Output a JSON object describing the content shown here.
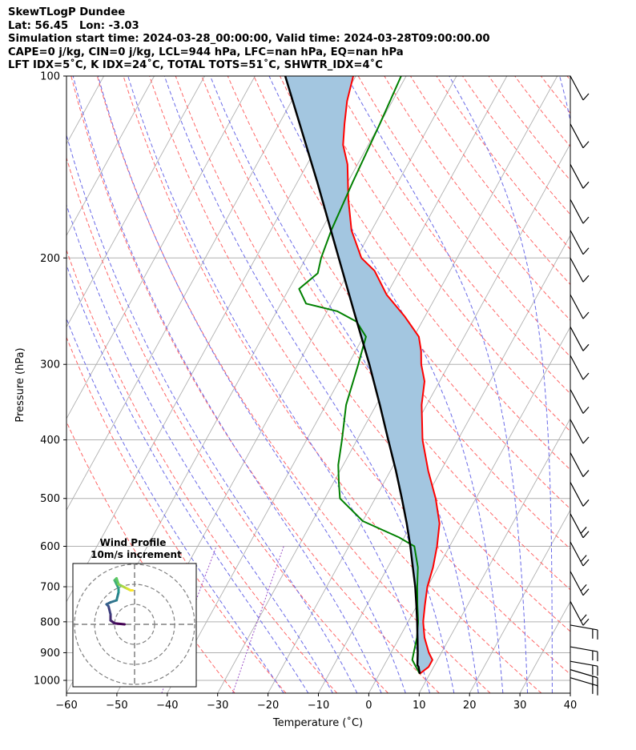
{
  "header": {
    "title": "SkewTLogP Dundee",
    "location": "Lat: 56.45   Lon: -3.03",
    "times": "Simulation start time: 2024-03-28_00:00:00, Valid time: 2024-03-28T09:00:00.00",
    "indices1": "CAPE=0 j/kg, CIN=0 j/kg, LCL=944 hPa, LFC=nan hPa, EQ=nan hPa",
    "indices2": "LFT IDX=5˚C, K IDX=24˚C, TOTAL TOTS=51˚C, SHWTR_IDX=4˚C"
  },
  "colors": {
    "temperature": "#ff0000",
    "dewpoint": "#008000",
    "parcel": "#000000",
    "cape_fill": "#a3c6e0",
    "dry_adiabat": "#ff6666",
    "moist_adiabat": "#6a6ae8",
    "mixing_ratio": "#9b4fc8",
    "isotherm": "#b0b0b0"
  },
  "chart_data": {
    "type": "line",
    "subtype": "skew-t log-p",
    "xlabel": "Temperature (˚C)",
    "ylabel": "Pressure (hPa)",
    "xlim": [
      -60,
      40
    ],
    "ylim": [
      1050,
      100
    ],
    "xticks": [
      -60,
      -50,
      -40,
      -30,
      -20,
      -10,
      0,
      10,
      20,
      30,
      40
    ],
    "yticks": [
      1000,
      900,
      800,
      700,
      600,
      500,
      400,
      300,
      200,
      100
    ],
    "series": [
      {
        "name": "Temperature",
        "color": "#ff0000",
        "points": [
          [
            975,
            8
          ],
          [
            950,
            9
          ],
          [
            925,
            9
          ],
          [
            900,
            7.5
          ],
          [
            850,
            5
          ],
          [
            800,
            3
          ],
          [
            750,
            1.5
          ],
          [
            700,
            0
          ],
          [
            650,
            -1
          ],
          [
            600,
            -2.5
          ],
          [
            550,
            -4.5
          ],
          [
            500,
            -8
          ],
          [
            450,
            -12.5
          ],
          [
            400,
            -17
          ],
          [
            350,
            -21
          ],
          [
            320,
            -23
          ],
          [
            300,
            -25.5
          ],
          [
            285,
            -27
          ],
          [
            270,
            -29
          ],
          [
            250,
            -34
          ],
          [
            230,
            -40
          ],
          [
            210,
            -45
          ],
          [
            200,
            -49
          ],
          [
            180,
            -54
          ],
          [
            160,
            -58
          ],
          [
            140,
            -62
          ],
          [
            130,
            -65
          ],
          [
            120,
            -67
          ],
          [
            110,
            -69
          ],
          [
            100,
            -70.5
          ]
        ]
      },
      {
        "name": "Dewpoint",
        "color": "#008000",
        "points": [
          [
            975,
            8
          ],
          [
            950,
            6.5
          ],
          [
            925,
            5
          ],
          [
            900,
            4.5
          ],
          [
            850,
            3.5
          ],
          [
            800,
            2
          ],
          [
            750,
            0
          ],
          [
            700,
            -2
          ],
          [
            650,
            -4
          ],
          [
            600,
            -7
          ],
          [
            580,
            -11
          ],
          [
            545,
            -20
          ],
          [
            500,
            -27
          ],
          [
            470,
            -29
          ],
          [
            440,
            -31
          ],
          [
            400,
            -33
          ],
          [
            350,
            -36
          ],
          [
            300,
            -38
          ],
          [
            280,
            -39
          ],
          [
            270,
            -39.5
          ],
          [
            255,
            -43
          ],
          [
            245,
            -48
          ],
          [
            238,
            -55
          ],
          [
            225,
            -58
          ],
          [
            212,
            -56
          ],
          [
            200,
            -57
          ],
          [
            180,
            -58
          ],
          [
            150,
            -59
          ],
          [
            120,
            -60
          ],
          [
            100,
            -61
          ]
        ]
      },
      {
        "name": "Parcel",
        "color": "#000000",
        "points": [
          [
            975,
            8
          ],
          [
            950,
            7
          ],
          [
            944,
            6.6
          ],
          [
            900,
            5.3
          ],
          [
            850,
            3.6
          ],
          [
            800,
            1.8
          ],
          [
            750,
            -0.2
          ],
          [
            700,
            -2.4
          ],
          [
            650,
            -5
          ],
          [
            600,
            -7.8
          ],
          [
            550,
            -11
          ],
          [
            500,
            -14.7
          ],
          [
            450,
            -18.9
          ],
          [
            400,
            -23.8
          ],
          [
            350,
            -29.3
          ],
          [
            300,
            -35.8
          ],
          [
            250,
            -43.8
          ],
          [
            200,
            -53.5
          ],
          [
            150,
            -66
          ],
          [
            100,
            -84
          ]
        ]
      }
    ],
    "shaded_region": "CAPE/CIN area between parcel and temperature",
    "wind_barbs": {
      "pressures": [
        100,
        120,
        140,
        160,
        180,
        200,
        230,
        260,
        290,
        330,
        370,
        420,
        470,
        530,
        590,
        660,
        740,
        810,
        880,
        930,
        960,
        990
      ]
    },
    "hodograph": {
      "title": "Wind Profile",
      "subtitle": "10m/s increment",
      "points": [
        [
          -5,
          0
        ],
        [
          -10,
          0.5
        ],
        [
          -12,
          2
        ],
        [
          -12,
          5
        ],
        [
          -13,
          9
        ],
        [
          -14,
          10
        ],
        [
          -12,
          11
        ],
        [
          -9,
          12
        ],
        [
          -8,
          16
        ],
        [
          -8,
          18
        ],
        [
          -9,
          20
        ],
        [
          -10,
          22
        ],
        [
          -9,
          23
        ],
        [
          -8,
          20
        ],
        [
          -6,
          19
        ],
        [
          -4,
          18
        ],
        [
          -2,
          17
        ],
        [
          -1,
          17
        ]
      ]
    }
  }
}
